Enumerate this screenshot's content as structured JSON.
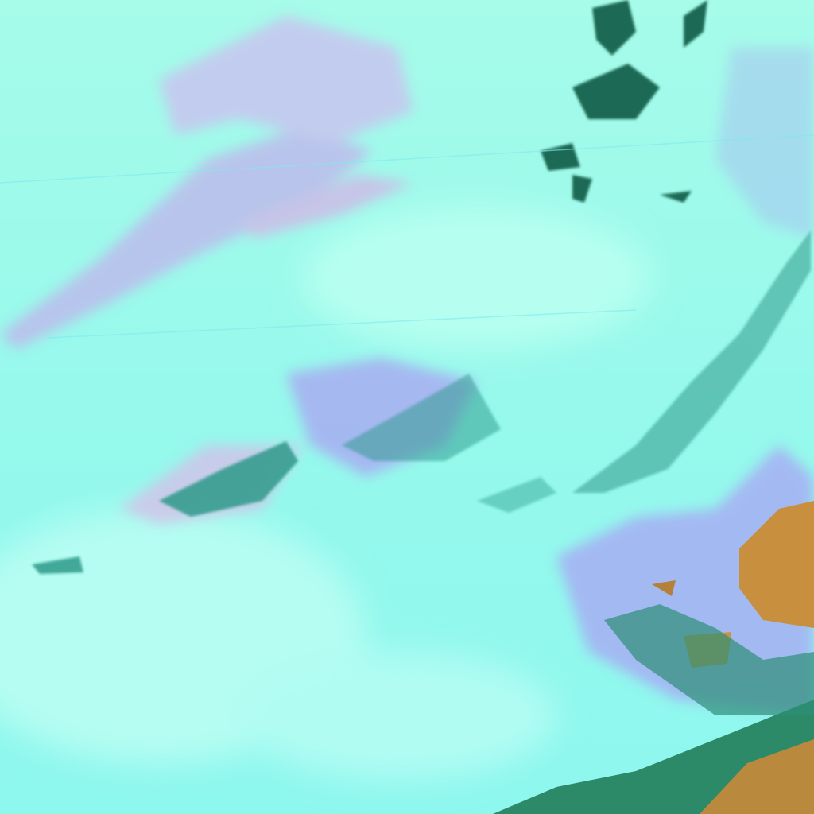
{
  "image": {
    "kind": "false-color satellite cloud imagery",
    "colors": {
      "cloud_base": "#8ff8ee",
      "cloud_bright": "#b8fff2",
      "high_cloud_lavender": "#c7b6ee",
      "haze_violet": "#a9a2f2",
      "land_ochre": "#c8903e",
      "land_dark_green": "#1f6a55",
      "cloud_cell_teal": "#2e9a8a"
    }
  }
}
